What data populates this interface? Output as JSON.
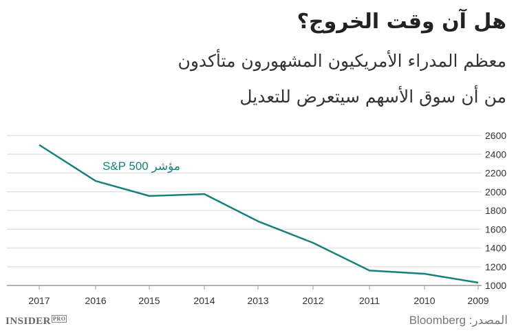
{
  "title": "هل آن وقت الخروج؟",
  "subtitle_lines": [
    "معظم المدراء الأمريكيون المشهورون متأكدون",
    "من أن سوق الأسهم سيتعرض للتعديل"
  ],
  "logo": {
    "main": "INSIDER",
    "tag": "PRO"
  },
  "source": "المصدر: Bloomberg",
  "chart_data": {
    "type": "line",
    "x": [
      "2017",
      "2016",
      "2015",
      "2014",
      "2013",
      "2012",
      "2011",
      "2010",
      "2009"
    ],
    "series": [
      {
        "name": "مؤشر S&P 500",
        "values": [
          2500,
          2115,
          1955,
          1975,
          1685,
          1455,
          1160,
          1125,
          1030
        ],
        "color": "#17807e"
      }
    ],
    "yticks": [
      1000,
      1200,
      1400,
      1600,
      1800,
      2000,
      2200,
      2400,
      2600
    ],
    "ylim": [
      1000,
      2600
    ],
    "x_direction": "reversed",
    "y_axis_side": "right",
    "grid": true
  }
}
